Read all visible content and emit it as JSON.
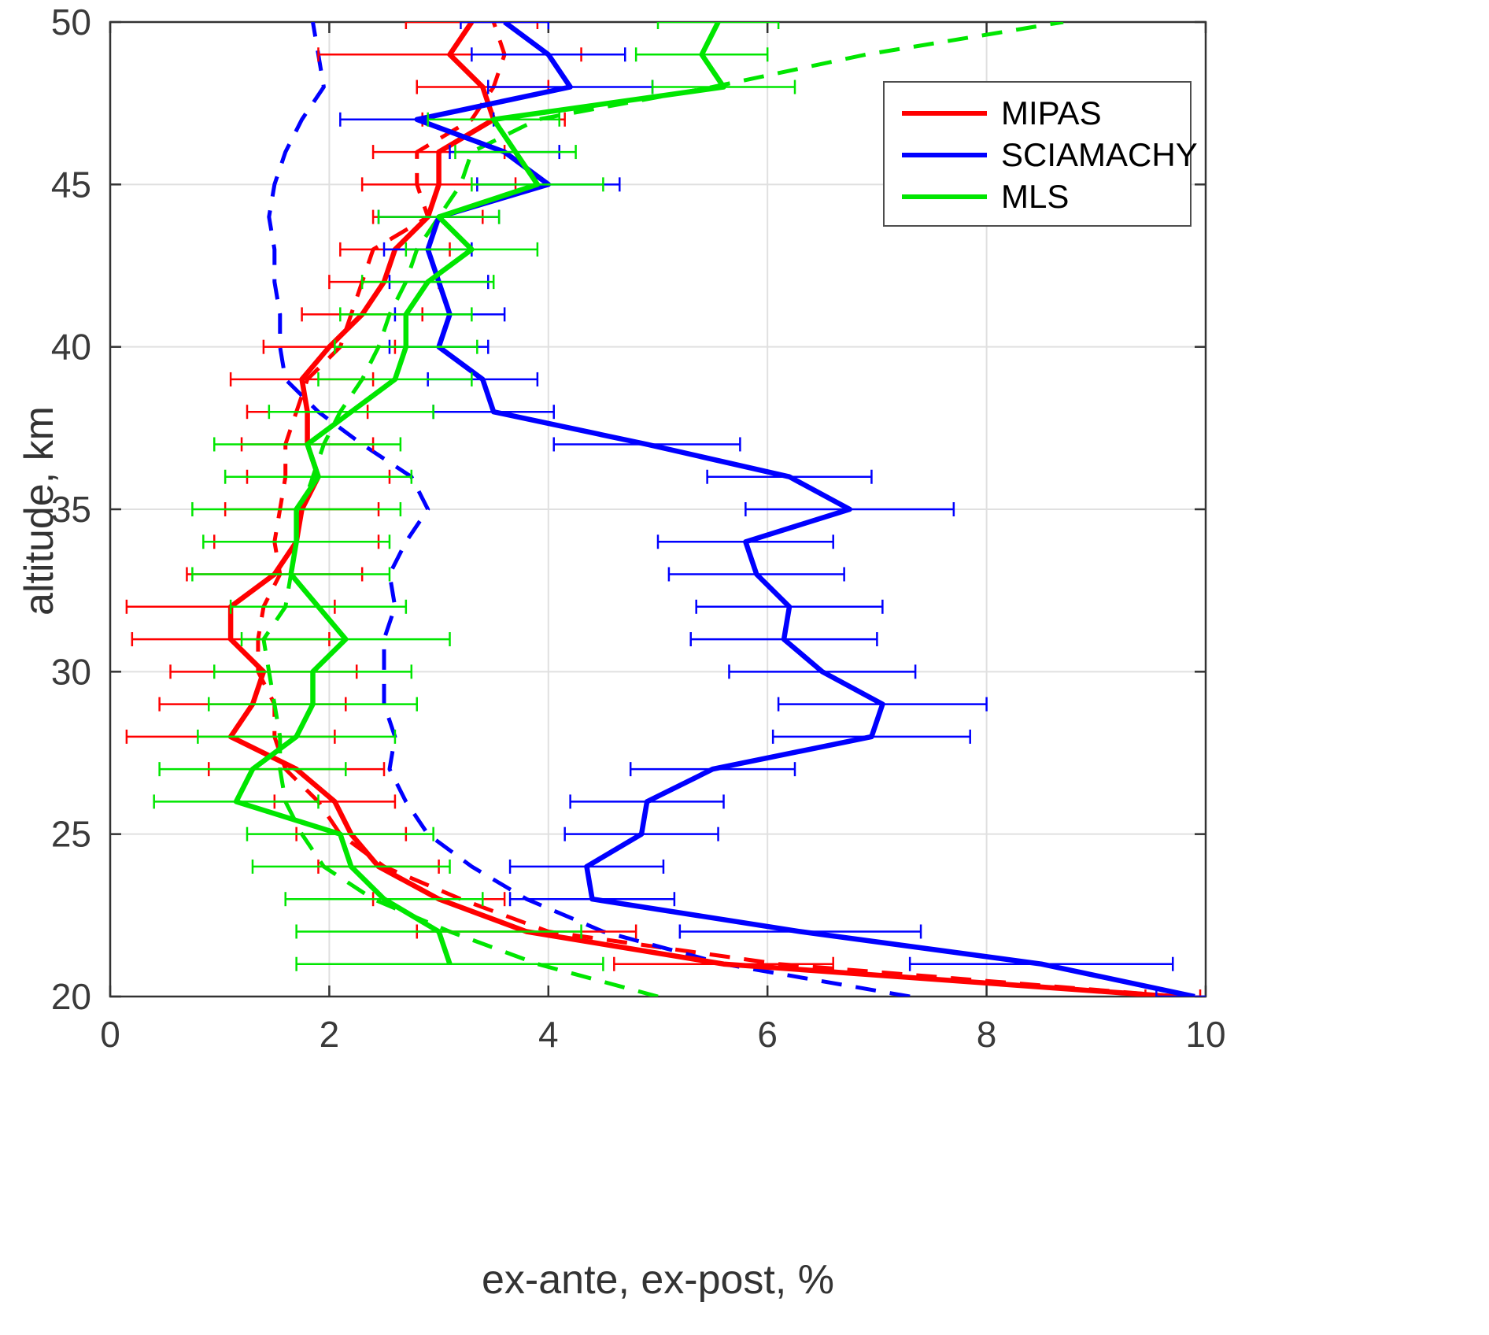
{
  "chart_data": {
    "type": "line",
    "title": "",
    "xlabel": "ex-ante, ex-post, %",
    "ylabel": "altitude, km",
    "xlim": [
      0,
      10
    ],
    "ylim": [
      20,
      50
    ],
    "xticks": [
      0,
      2,
      4,
      6,
      8,
      10
    ],
    "yticks": [
      20,
      25,
      30,
      35,
      40,
      45,
      50
    ],
    "grid": true,
    "error_bars": "horizontal",
    "colors": {
      "grid": "#e0e0e0",
      "axis": "#333333",
      "mipas": "#ff0000",
      "sciamachy": "#0000ff",
      "mls": "#00e600"
    },
    "legend": {
      "position": "northeast",
      "entries": [
        {
          "label": "MIPAS",
          "color": "#ff0000"
        },
        {
          "label": "SCIAMACHY",
          "color": "#0000ff"
        },
        {
          "label": "MLS",
          "color": "#00e600"
        }
      ]
    },
    "altitudes": [
      20,
      21,
      22,
      23,
      24,
      25,
      26,
      27,
      28,
      29,
      30,
      31,
      32,
      33,
      34,
      35,
      36,
      37,
      38,
      39,
      40,
      41,
      42,
      43,
      44,
      45,
      46,
      47,
      48,
      49,
      50
    ],
    "series": [
      {
        "name": "MIPAS",
        "variant": "ex-ante",
        "color": "#ff0000",
        "dash": true,
        "values": [
          9.75,
          6.1,
          4.0,
          3.2,
          2.5,
          2.1,
          1.9,
          1.6,
          1.5,
          1.5,
          1.35,
          1.35,
          1.4,
          1.55,
          1.5,
          1.55,
          1.6,
          1.6,
          1.7,
          1.8,
          2.1,
          2.2,
          2.3,
          2.4,
          2.9,
          2.8,
          2.8,
          3.3,
          3.5,
          3.6,
          3.5
        ]
      },
      {
        "name": "SCIAMACHY",
        "variant": "ex-ante",
        "color": "#0000ff",
        "dash": true,
        "values": [
          7.3,
          5.6,
          4.5,
          3.8,
          3.3,
          2.9,
          2.7,
          2.55,
          2.6,
          2.5,
          2.5,
          2.5,
          2.6,
          2.55,
          2.7,
          2.9,
          2.75,
          2.3,
          1.9,
          1.6,
          1.55,
          1.55,
          1.5,
          1.5,
          1.45,
          1.5,
          1.6,
          1.75,
          1.95,
          1.9,
          1.85
        ]
      },
      {
        "name": "MLS",
        "variant": "ex-ante",
        "color": "#00e600",
        "dash": true,
        "values": [
          5.0,
          3.9,
          3.1,
          2.4,
          1.95,
          1.75,
          1.6,
          1.55,
          1.55,
          1.5,
          1.45,
          1.4,
          1.6,
          1.65,
          1.7,
          1.75,
          1.85,
          1.95,
          2.1,
          2.3,
          2.45,
          2.55,
          2.7,
          2.8,
          3.0,
          3.2,
          3.3,
          3.9,
          5.5,
          6.9,
          8.7
        ]
      },
      {
        "name": "MIPAS",
        "variant": "ex-post",
        "color": "#ff0000",
        "dash": false,
        "values": [
          9.7,
          5.6,
          3.8,
          3.0,
          2.45,
          2.2,
          2.05,
          1.7,
          1.1,
          1.3,
          1.4,
          1.1,
          1.1,
          1.5,
          1.7,
          1.75,
          1.9,
          1.8,
          1.8,
          1.75,
          2.0,
          2.3,
          2.5,
          2.6,
          2.9,
          3.0,
          3.0,
          3.5,
          3.4,
          3.1,
          3.3
        ],
        "xerr": [
          0.25,
          1.0,
          1.0,
          0.6,
          0.55,
          0.5,
          0.55,
          0.8,
          0.95,
          0.85,
          0.85,
          0.9,
          0.95,
          0.8,
          0.75,
          0.7,
          0.65,
          0.6,
          0.55,
          0.65,
          0.6,
          0.55,
          0.5,
          0.5,
          0.5,
          0.7,
          0.6,
          0.65,
          0.6,
          1.2,
          0.6
        ]
      },
      {
        "name": "SCIAMACHY",
        "variant": "ex-post",
        "color": "#0000ff",
        "dash": false,
        "values": [
          9.9,
          8.5,
          6.3,
          4.4,
          4.35,
          4.85,
          4.9,
          5.5,
          6.95,
          7.05,
          6.5,
          6.15,
          6.2,
          5.9,
          5.8,
          6.75,
          6.2,
          4.9,
          3.5,
          3.4,
          3.0,
          3.1,
          3.0,
          2.9,
          3.0,
          4.0,
          3.6,
          2.8,
          4.2,
          4.0,
          3.6
        ],
        "xerr": [
          0.35,
          1.2,
          1.1,
          0.75,
          0.7,
          0.7,
          0.7,
          0.75,
          0.9,
          0.95,
          0.85,
          0.85,
          0.85,
          0.8,
          0.8,
          0.95,
          0.75,
          0.85,
          0.55,
          0.5,
          0.45,
          0.5,
          0.45,
          0.4,
          0.55,
          0.65,
          0.5,
          0.7,
          0.75,
          0.7,
          0.4
        ]
      },
      {
        "name": "MLS",
        "variant": "ex-post",
        "color": "#00e600",
        "dash": false,
        "values": [
          null,
          3.1,
          3.0,
          2.5,
          2.2,
          2.1,
          1.15,
          1.3,
          1.7,
          1.85,
          1.85,
          2.15,
          1.9,
          1.65,
          1.7,
          1.7,
          1.9,
          1.8,
          2.2,
          2.6,
          2.7,
          2.7,
          2.9,
          3.3,
          3.0,
          3.9,
          3.7,
          3.5,
          5.6,
          5.4,
          5.55
        ],
        "xerr": [
          null,
          1.4,
          1.3,
          0.9,
          0.9,
          0.85,
          0.75,
          0.85,
          0.9,
          0.95,
          0.9,
          0.95,
          0.8,
          0.9,
          0.85,
          0.95,
          0.85,
          0.85,
          0.75,
          0.7,
          0.65,
          0.6,
          0.6,
          0.6,
          0.55,
          0.6,
          0.55,
          0.6,
          0.65,
          0.6,
          0.55
        ]
      }
    ]
  }
}
